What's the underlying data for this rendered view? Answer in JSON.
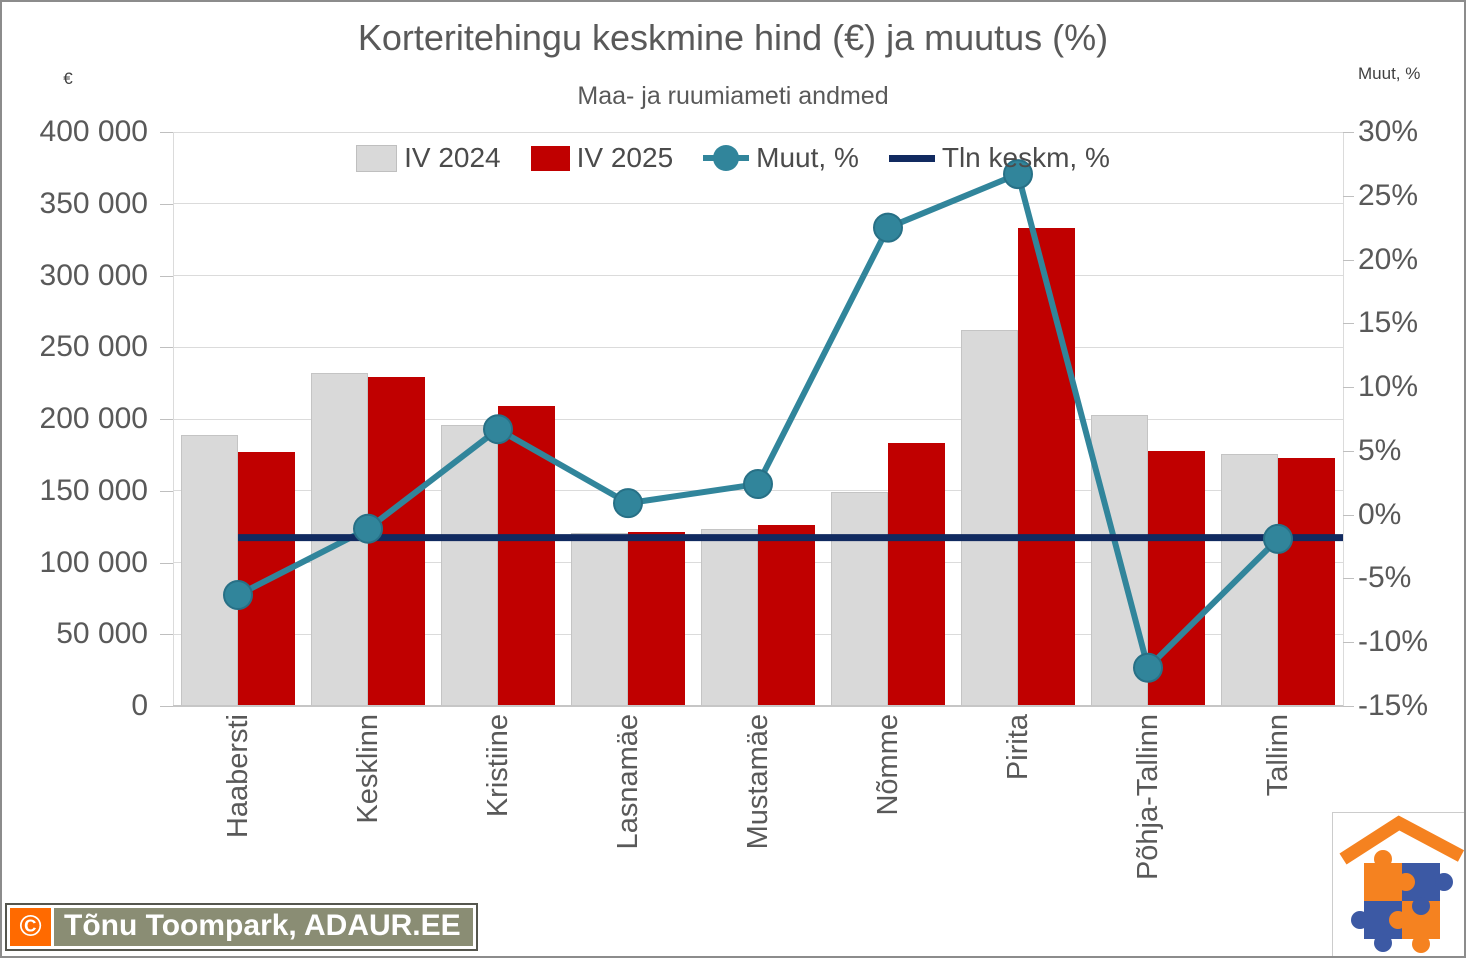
{
  "chart": {
    "title": "Korteritehingu keskmine hind (€) ja muutus (%)",
    "subtitle": "Maa- ja ruumiameti andmed",
    "left_axis_title": "€",
    "right_axis_title": "Muut, %"
  },
  "legend": [
    {
      "label": "IV 2024",
      "swatch": "box",
      "color": "#D9D9D9"
    },
    {
      "label": "IV 2025",
      "swatch": "box",
      "color": "#C00000"
    },
    {
      "label": "Muut, %",
      "swatch": "line-marker",
      "color": "#31859B"
    },
    {
      "label": "Tln keskm, %",
      "swatch": "line",
      "color": "#112A60"
    }
  ],
  "chart_data": {
    "type": "bar",
    "subtype": "clustered bars with secondary-axis lines",
    "title": "Korteritehingu keskmine hind (€) ja muutus (%)",
    "subtitle": "Maa- ja ruumiameti andmed",
    "categories": [
      "Haabersti",
      "Kesklinn",
      "Kristiine",
      "Lasnamäe",
      "Mustamäe",
      "Nõmme",
      "Pirita",
      "Põhja-Tallinn",
      "Tallinn"
    ],
    "series": [
      {
        "name": "IV 2024",
        "type": "bar",
        "axis": "left",
        "color": "#D9D9D9",
        "values": [
          189000,
          232000,
          195500,
          120500,
          123000,
          149000,
          262000,
          202500,
          175500
        ]
      },
      {
        "name": "IV 2025",
        "type": "bar",
        "axis": "left",
        "color": "#C00000",
        "values": [
          177000,
          229000,
          209000,
          121500,
          126000,
          183000,
          333000,
          178000,
          173000
        ]
      },
      {
        "name": "Muut, %",
        "type": "line",
        "axis": "right",
        "color": "#31859B",
        "values": [
          -6.3,
          -1.1,
          6.7,
          0.9,
          2.4,
          22.5,
          26.7,
          -12.0,
          -1.9
        ]
      },
      {
        "name": "Tln keskm, %",
        "type": "line",
        "axis": "right",
        "color": "#112A60",
        "constant_value": -1.8
      }
    ],
    "left_axis": {
      "title": "€",
      "min": 0,
      "max": 400000,
      "step": 50000,
      "tick_labels": [
        "400 000",
        "350 000",
        "300 000",
        "250 000",
        "200 000",
        "150 000",
        "100 000",
        "50 000",
        "0"
      ]
    },
    "right_axis": {
      "title": "Muut, %",
      "min": -15,
      "max": 30,
      "step": 5,
      "tick_labels": [
        "30%",
        "25%",
        "20%",
        "15%",
        "10%",
        "5%",
        "0%",
        "-5%",
        "-10%",
        "-15%"
      ]
    },
    "grid": "horizontal",
    "legend_position": "top"
  },
  "watermark": {
    "symbol": "©",
    "text": "Tõnu Toompark, ADAUR.EE"
  },
  "colors": {
    "bar_2024": "#D9D9D9",
    "bar_2024_border": "#C4C4C4",
    "bar_2025": "#C00000",
    "muut_line": "#31859B",
    "muut_marker_stroke": "#277086",
    "tln_line": "#112A60",
    "text": "#595959",
    "grid": "#DBDBDB",
    "tick": "#BFBFBF",
    "x_axis_line": "#C6C6C6",
    "logo_orange": "#F58220",
    "logo_blue": "#3C59A4",
    "watermark_bg": "#8A8D74",
    "watermark_orange": "#FF6A00"
  }
}
